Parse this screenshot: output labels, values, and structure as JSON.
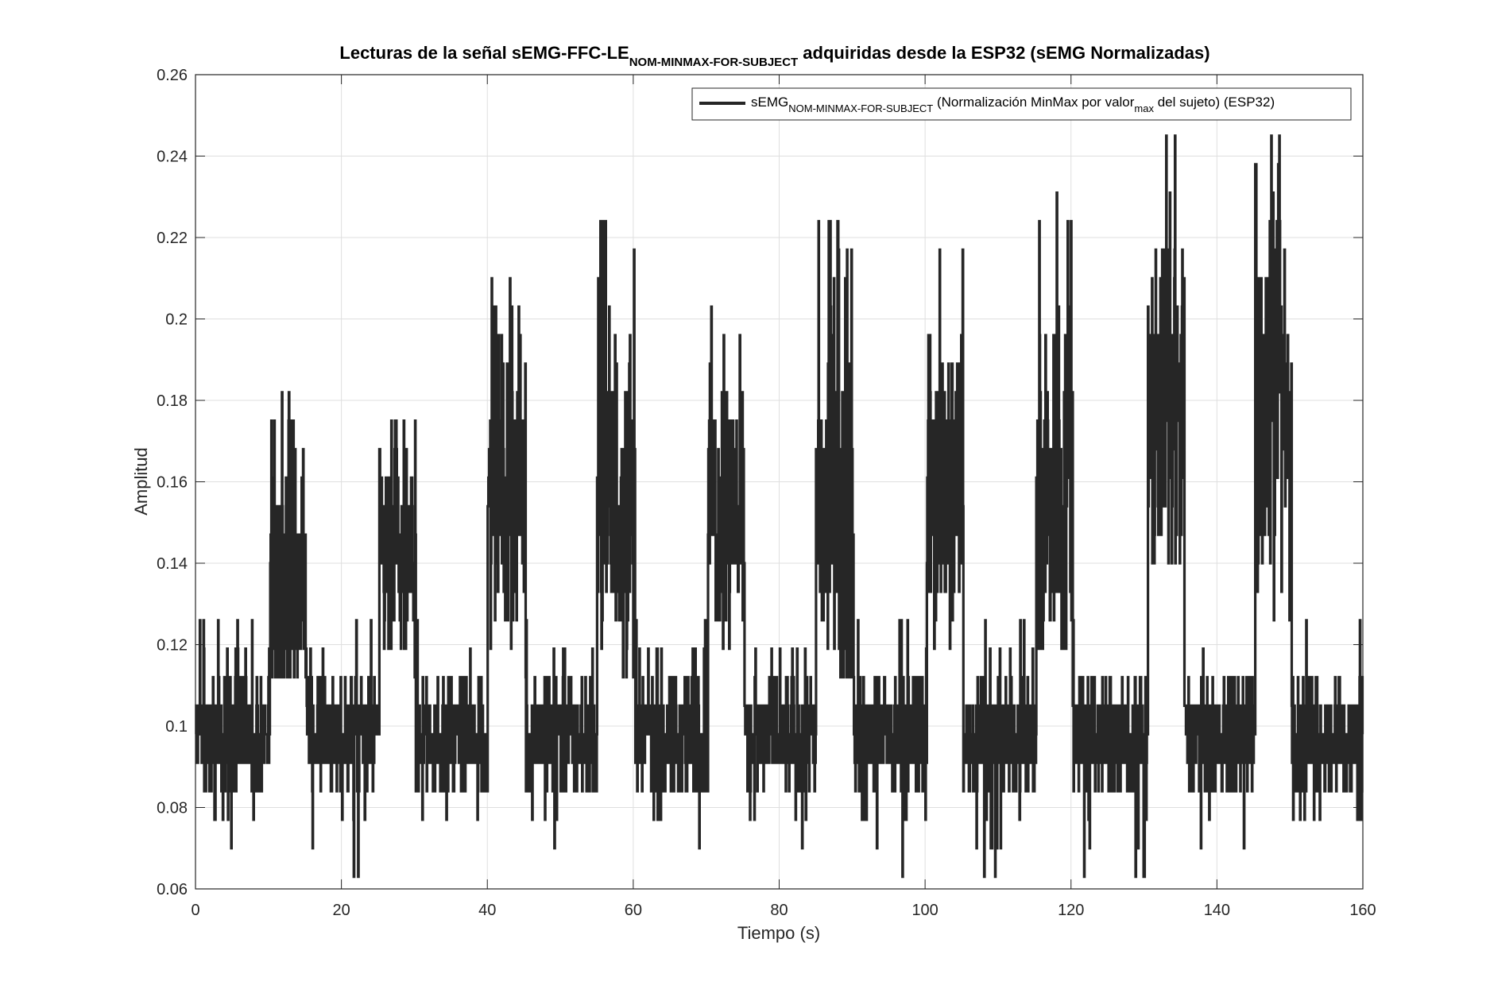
{
  "chart_data": {
    "type": "line",
    "title": {
      "main": "Lecturas de la señal sEMG-FFC-LE",
      "subscript": "NOM-MINMAX-FOR-SUBJECT",
      "rest": " adquiridas desde la ESP32 (sEMG Normalizadas)"
    },
    "xlabel": "Tiempo (s)",
    "ylabel": "Amplitud",
    "xlim": [
      0,
      160
    ],
    "ylim": [
      0.06,
      0.26
    ],
    "x_ticks": [
      "0",
      "20",
      "40",
      "60",
      "80",
      "100",
      "120",
      "140",
      "160"
    ],
    "y_ticks": [
      "0.06",
      "0.08",
      "0.1",
      "0.12",
      "0.14",
      "0.16",
      "0.18",
      "0.2",
      "0.22",
      "0.24",
      "0.26"
    ],
    "grid": true,
    "legend": {
      "placement": "top-right",
      "label_main": "sEMG",
      "label_sub1": "NOM-MINMAX-FOR-SUBJECT",
      "label_mid": " (Normalización MinMax por valor",
      "label_sub2": "max",
      "label_end": " del sujeto) (ESP32)"
    },
    "series": [
      {
        "color": "#262626",
        "baseline_mean": 0.097,
        "baseline_range": [
          0.063,
          0.127
        ],
        "bursts": [
          {
            "start": 10.2,
            "end": 15.2,
            "mean": 0.135,
            "peak": 0.183
          },
          {
            "start": 25.2,
            "end": 30.2,
            "mean": 0.14,
            "peak": 0.183
          },
          {
            "start": 40.0,
            "end": 45.2,
            "mean": 0.16,
            "peak": 0.211
          },
          {
            "start": 55.0,
            "end": 60.2,
            "mean": 0.155,
            "peak": 0.225
          },
          {
            "start": 70.2,
            "end": 75.2,
            "mean": 0.155,
            "peak": 0.204
          },
          {
            "start": 85.0,
            "end": 90.2,
            "mean": 0.155,
            "peak": 0.225
          },
          {
            "start": 100.2,
            "end": 105.2,
            "mean": 0.16,
            "peak": 0.225
          },
          {
            "start": 115.2,
            "end": 120.2,
            "mean": 0.16,
            "peak": 0.232
          },
          {
            "start": 130.5,
            "end": 135.5,
            "mean": 0.175,
            "peak": 0.246
          },
          {
            "start": 145.2,
            "end": 150.2,
            "mean": 0.175,
            "peak": 0.246
          }
        ]
      }
    ]
  }
}
